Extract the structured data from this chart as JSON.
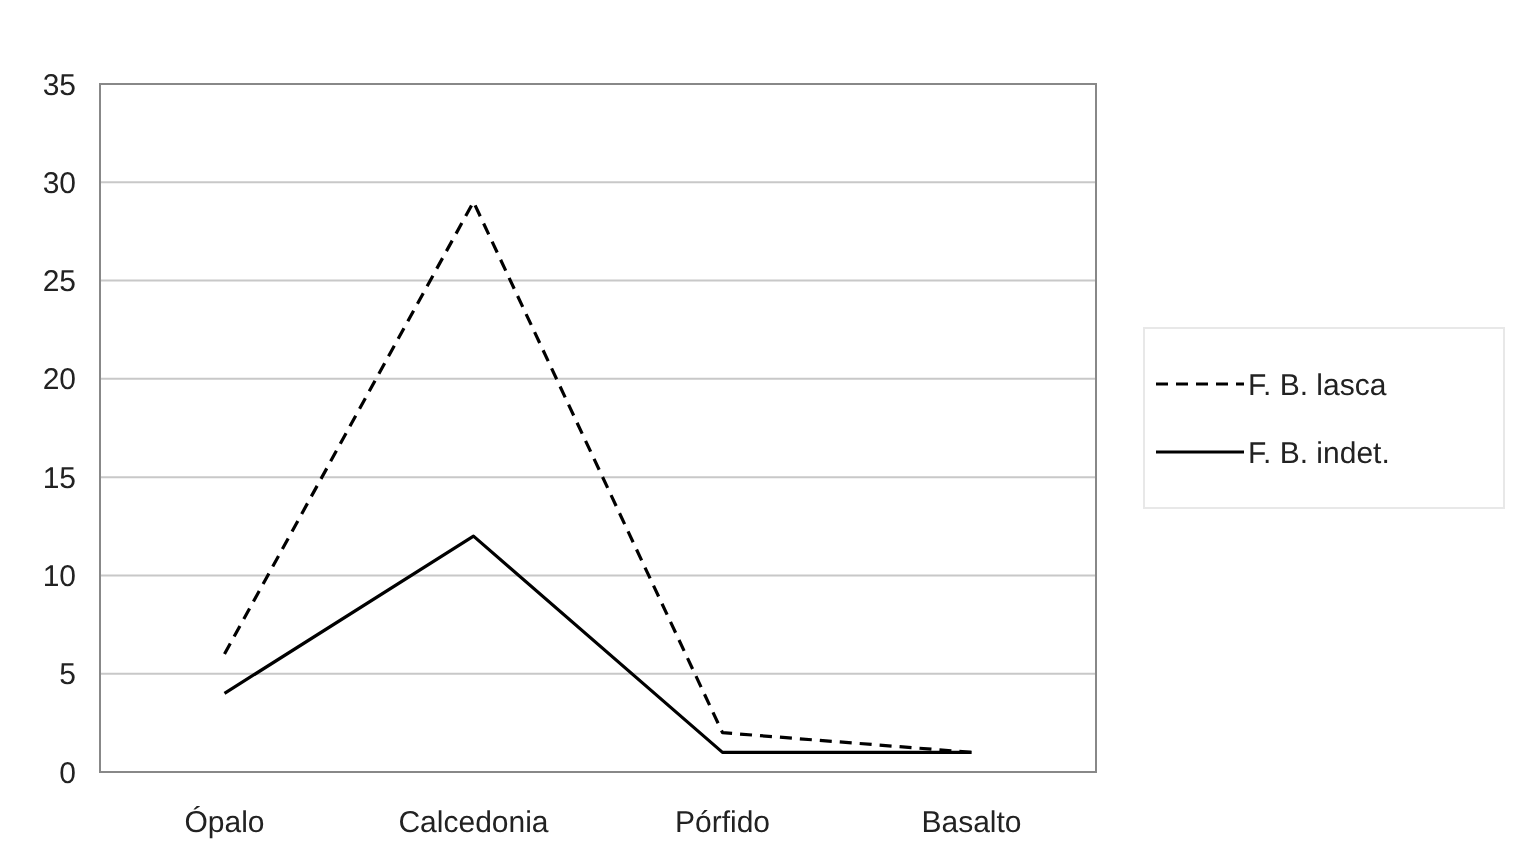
{
  "chart_data": {
    "type": "line",
    "categories": [
      "Ópalo",
      "Calcedonia",
      "Pórfido",
      "Basalto"
    ],
    "series": [
      {
        "name": "F. B. lasca",
        "color": "#000000",
        "values": [
          6,
          29,
          2,
          1
        ],
        "line_style": "dashed"
      },
      {
        "name": "F. B. indet.",
        "color": "#000000",
        "values": [
          4,
          12,
          1,
          1
        ],
        "line_style": "solid"
      }
    ],
    "ylim": [
      0,
      35
    ],
    "yticks": [
      0,
      5,
      10,
      15,
      20,
      25,
      30,
      35
    ],
    "grid": "y",
    "legend": "right",
    "marker": "none"
  }
}
